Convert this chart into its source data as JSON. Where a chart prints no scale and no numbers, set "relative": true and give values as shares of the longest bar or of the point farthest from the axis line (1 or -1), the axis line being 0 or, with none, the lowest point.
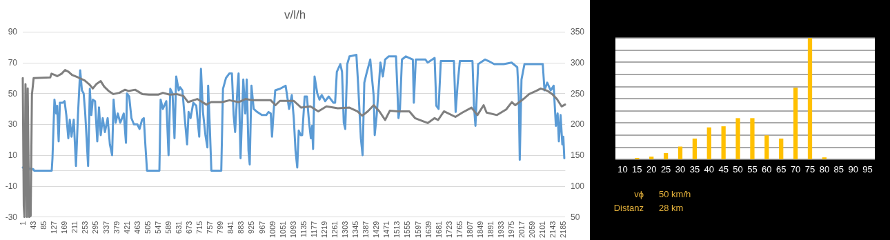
{
  "chart_data": [
    {
      "type": "line",
      "title": "v/l/h",
      "xlim": [
        1,
        2192
      ],
      "xticks": [
        1,
        43,
        85,
        127,
        169,
        211,
        253,
        295,
        337,
        379,
        421,
        463,
        505,
        547,
        589,
        631,
        673,
        715,
        757,
        799,
        841,
        883,
        925,
        967,
        1009,
        1051,
        1093,
        1135,
        1177,
        1219,
        1261,
        1303,
        1345,
        1387,
        1429,
        1471,
        1513,
        1555,
        1597,
        1639,
        1681,
        1723,
        1765,
        1807,
        1849,
        1891,
        1933,
        1975,
        2017,
        2059,
        2101,
        2143,
        2185
      ],
      "ylim": [
        -30,
        90
      ],
      "yticks": [
        -30,
        -10,
        10,
        30,
        50,
        70,
        90
      ],
      "y2lim": [
        50,
        350
      ],
      "y2ticks": [
        50,
        100,
        150,
        200,
        250,
        300,
        350
      ],
      "grid": "y",
      "marker": "none",
      "line_style": "solid",
      "series": [
        {
          "color": "#5b9bd5",
          "x": [
            1,
            43,
            47,
            118,
            121,
            129,
            136,
            140,
            146,
            151,
            163,
            170,
            177,
            185,
            191,
            198,
            207,
            216,
            224,
            233,
            240,
            247,
            253,
            265,
            272,
            278,
            284,
            293,
            302,
            309,
            316,
            324,
            333,
            344,
            353,
            362,
            368,
            376,
            385,
            395,
            409,
            418,
            422,
            431,
            440,
            450,
            464,
            473,
            483,
            490,
            497,
            503,
            553,
            558,
            567,
            581,
            590,
            597,
            606,
            614,
            621,
            631,
            637,
            646,
            656,
            665,
            671,
            679,
            690,
            702,
            714,
            721,
            729,
            739,
            747,
            750,
            757,
            763,
            803,
            810,
            822,
            836,
            846,
            853,
            859,
            869,
            873,
            881,
            892,
            900,
            906,
            913,
            918,
            925,
            934,
            948,
            967,
            985,
            994,
            1003,
            1008,
            1014,
            1021,
            1040,
            1063,
            1077,
            1088,
            1096,
            1103,
            1110,
            1116,
            1124,
            1130,
            1140,
            1149,
            1158,
            1165,
            1170,
            1174,
            1180,
            1191,
            1200,
            1209,
            1223,
            1237,
            1256,
            1263,
            1270,
            1284,
            1291,
            1298,
            1304,
            1312,
            1321,
            1349,
            1356,
            1367,
            1374,
            1381,
            1390,
            1405,
            1419,
            1423,
            1431,
            1440,
            1446,
            1456,
            1465,
            1479,
            1509,
            1514,
            1519,
            1525,
            1533,
            1549,
            1577,
            1581,
            1589,
            1628,
            1637,
            1665,
            1672,
            1681,
            1690,
            1743,
            1750,
            1758,
            1767,
            1818,
            1824,
            1830,
            1841,
            1869,
            1883,
            1906,
            1944,
            1976,
            1999,
            2005,
            2009,
            2016,
            2028,
            2102,
            2109,
            2120,
            2134,
            2146,
            2155,
            2162,
            2167,
            2174,
            2181,
            2185,
            2189
          ],
          "values": [
            2,
            1,
            0,
            0,
            8,
            46,
            37,
            42,
            19,
            44,
            44,
            45,
            36,
            21,
            33,
            22,
            33,
            3,
            36,
            65,
            52,
            50,
            38,
            3,
            53,
            36,
            46,
            45,
            19,
            41,
            23,
            34,
            25,
            34,
            17,
            10,
            46,
            31,
            37,
            31,
            37,
            18,
            50,
            48,
            34,
            30,
            30,
            27,
            33,
            34,
            15,
            0,
            0,
            46,
            40,
            45,
            10,
            53,
            50,
            21,
            61,
            52,
            54,
            52,
            33,
            17,
            38,
            34,
            44,
            42,
            22,
            66,
            38,
            23,
            15,
            55,
            27,
            0,
            0,
            53,
            60,
            63,
            63,
            36,
            25,
            55,
            63,
            8,
            59,
            37,
            59,
            13,
            4,
            55,
            40,
            38,
            36,
            36,
            38,
            37,
            22,
            37,
            52,
            53,
            55,
            40,
            49,
            34,
            13,
            2,
            26,
            23,
            23,
            48,
            48,
            31,
            21,
            29,
            14,
            61,
            50,
            46,
            49,
            45,
            48,
            44,
            44,
            64,
            69,
            64,
            31,
            27,
            69,
            74,
            75,
            56,
            21,
            10,
            57,
            63,
            72,
            48,
            23,
            36,
            56,
            70,
            61,
            72,
            74,
            74,
            55,
            34,
            40,
            72,
            74,
            72,
            44,
            72,
            72,
            70,
            73,
            42,
            40,
            71,
            71,
            38,
            56,
            71,
            71,
            42,
            29,
            69,
            72,
            71,
            69,
            69,
            70,
            67,
            48,
            7,
            59,
            69,
            69,
            52,
            57,
            52,
            55,
            29,
            37,
            19,
            36,
            17,
            22,
            8
          ]
        },
        {
          "color": "#7f7f7f",
          "axis": "y2",
          "x": [
            1,
            5,
            8,
            12,
            18,
            21,
            27,
            33,
            38,
            45,
            112,
            117,
            130,
            140,
            158,
            172,
            186,
            200,
            224,
            251,
            269,
            284,
            298,
            316,
            330,
            348,
            367,
            391,
            414,
            428,
            455,
            484,
            511,
            548,
            567,
            595,
            622,
            650,
            669,
            706,
            743,
            762,
            808,
            836,
            873,
            901,
            929,
            957,
            1003,
            1022,
            1040,
            1096,
            1126,
            1163,
            1195,
            1228,
            1274,
            1321,
            1353,
            1372,
            1395,
            1419,
            1442,
            1465,
            1484,
            1516,
            1563,
            1586,
            1637,
            1665,
            1679,
            1703,
            1749,
            1777,
            1814,
            1838,
            1863,
            1875,
            1917,
            1954,
            1977,
            1991,
            2024,
            2047,
            2075,
            2094,
            2122,
            2140,
            2159,
            2178,
            2192
          ],
          "values": [
            275,
            68,
            50,
            265,
            50,
            258,
            50,
            52,
            248,
            275,
            276,
            282,
            280,
            278,
            282,
            288,
            285,
            280,
            276,
            271,
            265,
            258,
            265,
            270,
            261,
            254,
            249,
            251,
            256,
            254,
            256,
            249,
            248,
            248,
            251,
            248,
            249,
            246,
            236,
            241,
            232,
            236,
            236,
            239,
            236,
            241,
            239,
            239,
            239,
            231,
            238,
            238,
            227,
            229,
            221,
            229,
            226,
            227,
            221,
            214,
            221,
            231,
            221,
            207,
            222,
            221,
            221,
            210,
            202,
            210,
            207,
            221,
            212,
            219,
            227,
            215,
            231,
            219,
            215,
            224,
            236,
            231,
            241,
            249,
            254,
            258,
            254,
            249,
            241,
            229,
            232
          ]
        }
      ]
    },
    {
      "type": "bar",
      "relative": true,
      "grid": true,
      "color": "#ffc000",
      "categories": [
        "10",
        "15",
        "20",
        "25",
        "30",
        "35",
        "40",
        "45",
        "50",
        "55",
        "60",
        "65",
        "70",
        "75",
        "80",
        "85",
        "90",
        "95"
      ],
      "values": [
        0,
        0.011,
        0.022,
        0.051,
        0.105,
        0.171,
        0.263,
        0.272,
        0.339,
        0.339,
        0.198,
        0.171,
        0.59,
        1,
        0.016,
        0,
        0,
        0
      ],
      "annotations": [
        "vϕ",
        "50 km/h",
        "Distanz",
        "28 km"
      ]
    }
  ]
}
